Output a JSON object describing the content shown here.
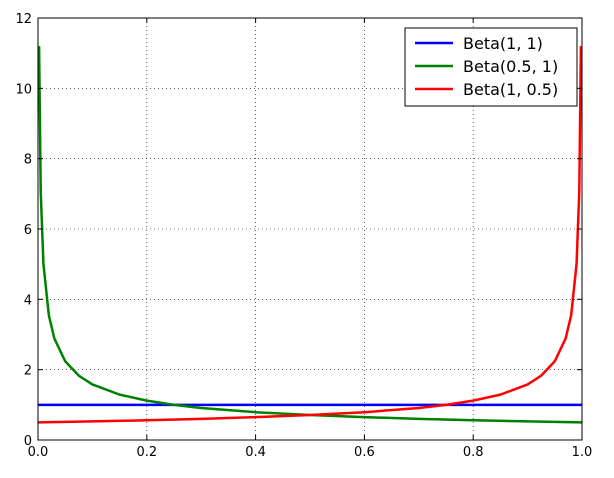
{
  "chart_data": {
    "type": "line",
    "title": "",
    "xlabel": "",
    "ylabel": "",
    "xlim": [
      0.0,
      1.0
    ],
    "ylim": [
      0,
      12
    ],
    "x_ticks": [
      "0.0",
      "0.2",
      "0.4",
      "0.6",
      "0.8",
      "1.0"
    ],
    "y_ticks": [
      "0",
      "2",
      "4",
      "6",
      "8",
      "10",
      "12"
    ],
    "grid": true,
    "legend_position": "top-right",
    "series": [
      {
        "name": "Beta(1, 1)",
        "color": "#0000ff",
        "x": [
          0.0,
          1.0
        ],
        "y": [
          1.0,
          1.0
        ]
      },
      {
        "name": "Beta(0.5, 1)",
        "color": "#008000",
        "x": [
          0.002,
          0.005,
          0.01,
          0.02,
          0.03,
          0.05,
          0.075,
          0.1,
          0.15,
          0.2,
          0.25,
          0.3,
          0.4,
          0.5,
          0.6,
          0.7,
          0.8,
          0.9,
          1.0
        ],
        "y": [
          11.2,
          7.07,
          5.0,
          3.54,
          2.89,
          2.24,
          1.83,
          1.58,
          1.29,
          1.12,
          1.0,
          0.91,
          0.79,
          0.71,
          0.65,
          0.6,
          0.56,
          0.53,
          0.5
        ]
      },
      {
        "name": "Beta(1, 0.5)",
        "color": "#ff0000",
        "x": [
          0.0,
          0.1,
          0.2,
          0.3,
          0.4,
          0.5,
          0.6,
          0.7,
          0.75,
          0.8,
          0.85,
          0.9,
          0.925,
          0.95,
          0.97,
          0.98,
          0.99,
          0.995,
          0.998
        ],
        "y": [
          0.5,
          0.53,
          0.56,
          0.6,
          0.65,
          0.71,
          0.79,
          0.91,
          1.0,
          1.12,
          1.29,
          1.58,
          1.83,
          2.24,
          2.89,
          3.54,
          5.0,
          7.07,
          11.2
        ]
      }
    ]
  }
}
